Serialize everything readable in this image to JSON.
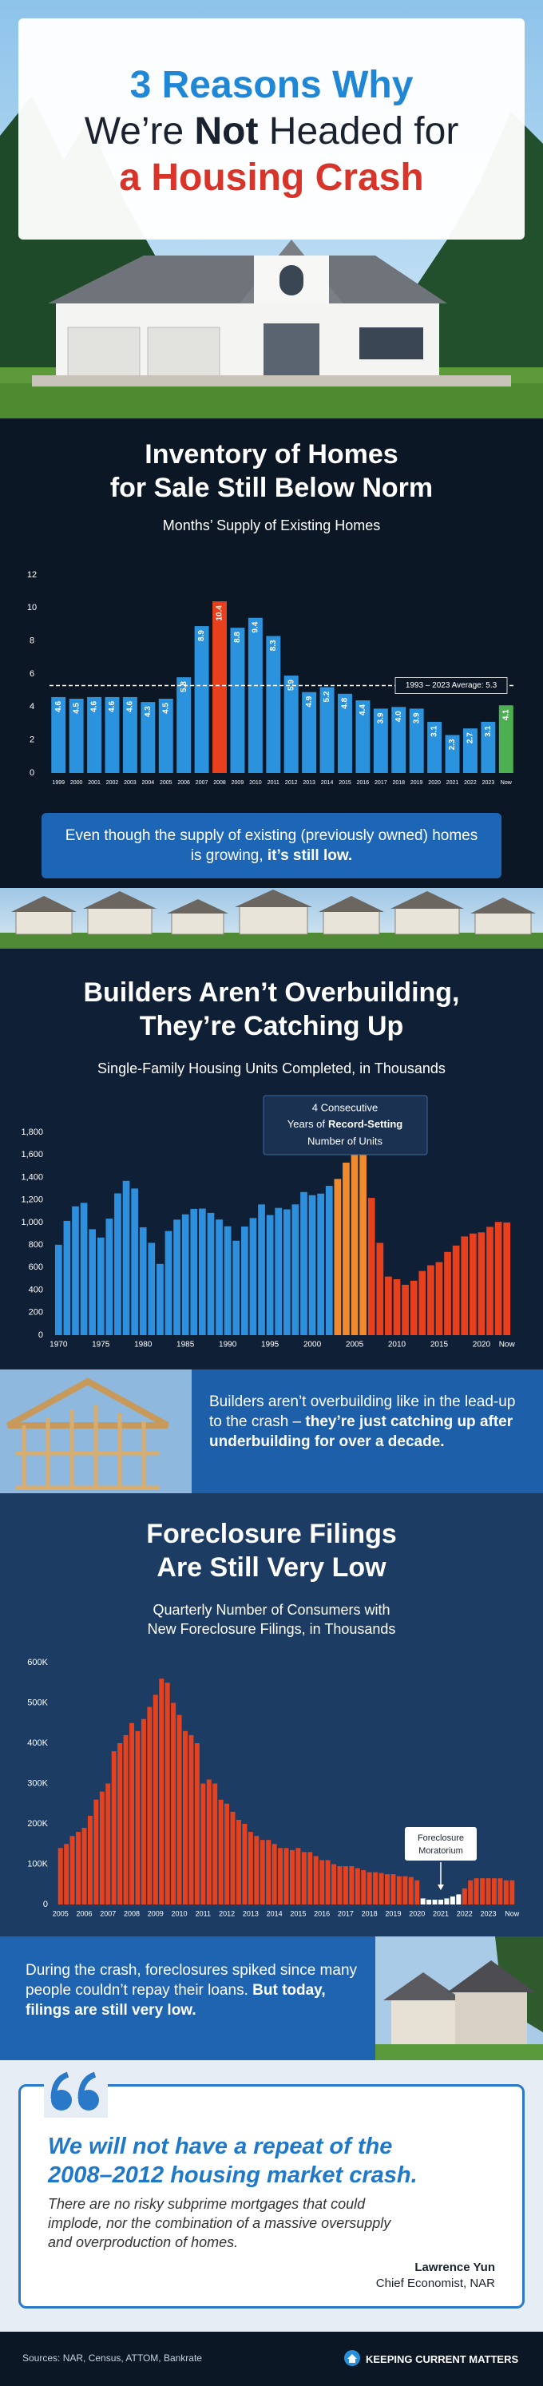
{
  "header": {
    "line1": "3 Reasons Why",
    "line2_pre": "We’re ",
    "line2_bold": "Not",
    "line2_post": " Headed for",
    "line3": "a Housing Crash"
  },
  "chart_data": [
    {
      "type": "bar",
      "title": [
        "Inventory of Homes",
        "for Sale Still Below Norm"
      ],
      "subtitle": "Months’ Supply of Existing Homes",
      "categories": [
        "1999",
        "2000",
        "2001",
        "2002",
        "2003",
        "2004",
        "2005",
        "2006",
        "2007",
        "2008",
        "2009",
        "2010",
        "2011",
        "2012",
        "2013",
        "2014",
        "2015",
        "2016",
        "2017",
        "2018",
        "2019",
        "2020",
        "2021",
        "2022",
        "2023",
        "Now"
      ],
      "values": [
        4.6,
        4.5,
        4.6,
        4.6,
        4.6,
        4.3,
        4.5,
        5.8,
        8.9,
        10.4,
        8.8,
        9.4,
        8.3,
        5.9,
        4.9,
        5.2,
        4.8,
        4.4,
        3.9,
        4.0,
        3.9,
        3.1,
        2.3,
        2.7,
        3.1,
        4.1
      ],
      "value_labels": [
        "4.6",
        "4.5",
        "4.6",
        "4.6",
        "4.6",
        "4.3",
        "4.5",
        "5.8",
        "8.9",
        "10.4",
        "8.8",
        "9.4",
        "8.3",
        "5.9",
        "4.9",
        "5.2",
        "4.8",
        "4.4",
        "3.9",
        "4.0",
        "3.9",
        "3.1",
        "2.3",
        "2.7",
        "3.1",
        "4.1"
      ],
      "colors": [
        "#2b93dd",
        "#2b93dd",
        "#2b93dd",
        "#2b93dd",
        "#2b93dd",
        "#2b93dd",
        "#2b93dd",
        "#2b93dd",
        "#2b93dd",
        "#e8401c",
        "#2b93dd",
        "#2b93dd",
        "#2b93dd",
        "#2b93dd",
        "#2b93dd",
        "#2b93dd",
        "#2b93dd",
        "#2b93dd",
        "#2b93dd",
        "#2b93dd",
        "#2b93dd",
        "#2b93dd",
        "#2b93dd",
        "#2b93dd",
        "#2b93dd",
        "#4caf50"
      ],
      "ylim": [
        0,
        12
      ],
      "yticks": [
        0,
        2,
        4,
        6,
        8,
        10,
        12
      ],
      "grid": false,
      "reference_line": {
        "value": 5.3,
        "label": "1993 – 2023 Average: 5.3"
      }
    },
    {
      "type": "bar",
      "title": [
        "Builders Aren’t Overbuilding,",
        "They’re Catching Up"
      ],
      "subtitle": "Single-Family Housing Units Completed, in Thousands",
      "categories": [
        "1970",
        null,
        null,
        null,
        null,
        "1975",
        null,
        null,
        null,
        null,
        "1980",
        null,
        null,
        null,
        null,
        "1985",
        null,
        null,
        null,
        null,
        "1990",
        null,
        null,
        null,
        null,
        "1995",
        null,
        null,
        null,
        null,
        "2000",
        null,
        null,
        null,
        null,
        "2005",
        null,
        null,
        null,
        null,
        "2010",
        null,
        null,
        null,
        null,
        "2015",
        null,
        null,
        null,
        null,
        "2020",
        null,
        null,
        "Now"
      ],
      "values": [
        802,
        1014,
        1143,
        1174,
        940,
        866,
        1034,
        1258,
        1369,
        1301,
        957,
        819,
        632,
        924,
        1025,
        1072,
        1120,
        1123,
        1085,
        1026,
        966,
        838,
        964,
        1039,
        1160,
        1066,
        1129,
        1116,
        1160,
        1270,
        1242,
        1256,
        1325,
        1386,
        1531,
        1636,
        1654,
        1218,
        819,
        520,
        496,
        447,
        483,
        569,
        620,
        648,
        738,
        795,
        876,
        902,
        912,
        961,
        1005,
        1000
      ],
      "colors": [
        "#2e90dc",
        "#2e90dc",
        "#2e90dc",
        "#2e90dc",
        "#2e90dc",
        "#2e90dc",
        "#2e90dc",
        "#2e90dc",
        "#2e90dc",
        "#2e90dc",
        "#2e90dc",
        "#2e90dc",
        "#2e90dc",
        "#2e90dc",
        "#2e90dc",
        "#2e90dc",
        "#2e90dc",
        "#2e90dc",
        "#2e90dc",
        "#2e90dc",
        "#2e90dc",
        "#2e90dc",
        "#2e90dc",
        "#2e90dc",
        "#2e90dc",
        "#2e90dc",
        "#2e90dc",
        "#2e90dc",
        "#2e90dc",
        "#2e90dc",
        "#2e90dc",
        "#2e90dc",
        "#2e90dc",
        "#f08a2c",
        "#f08a2c",
        "#f08a2c",
        "#f08a2c",
        "#e8401c",
        "#e8401c",
        "#e8401c",
        "#e8401c",
        "#e8401c",
        "#e8401c",
        "#e8401c",
        "#e8401c",
        "#e8401c",
        "#e8401c",
        "#e8401c",
        "#e8401c",
        "#e8401c",
        "#e8401c",
        "#e8401c",
        "#e8401c",
        "#e8401c"
      ],
      "ylim": [
        0,
        1800
      ],
      "yticks": [
        0,
        200,
        400,
        600,
        800,
        {
          "value": 1000,
          "label": "1,000"
        },
        {
          "value": 1200,
          "label": "1,200"
        },
        {
          "value": 1400,
          "label": "1,400"
        },
        {
          "value": 1600,
          "label": "1,600"
        },
        {
          "value": 1800,
          "label": "1,800"
        }
      ],
      "grid": false,
      "annotation": [
        "4 Consecutive",
        "Years of",
        "Record-Setting",
        "Number of Units"
      ]
    },
    {
      "type": "bar",
      "title": [
        "Foreclosure Filings",
        "Are Still Very Low"
      ],
      "subtitle": [
        "Quarterly Number of Consumers with",
        "New Foreclosure Filings, in Thousands"
      ],
      "categories": [
        "2005",
        null,
        null,
        null,
        "2006",
        null,
        null,
        null,
        "2007",
        null,
        null,
        null,
        "2008",
        null,
        null,
        null,
        "2009",
        null,
        null,
        null,
        "2010",
        null,
        null,
        null,
        "2011",
        null,
        null,
        null,
        "2012",
        null,
        null,
        null,
        "2013",
        null,
        null,
        null,
        "2014",
        null,
        null,
        null,
        "2015",
        null,
        null,
        null,
        "2016",
        null,
        null,
        null,
        "2017",
        null,
        null,
        null,
        "2018",
        null,
        null,
        null,
        "2019",
        null,
        null,
        null,
        "2020",
        null,
        null,
        null,
        "2021",
        null,
        null,
        null,
        "2022",
        null,
        null,
        null,
        "2023",
        null,
        null,
        null,
        "Now"
      ],
      "values": [
        140,
        150,
        170,
        180,
        190,
        220,
        260,
        280,
        300,
        380,
        400,
        420,
        450,
        430,
        460,
        490,
        520,
        560,
        550,
        500,
        470,
        430,
        420,
        400,
        300,
        310,
        300,
        260,
        250,
        230,
        210,
        200,
        180,
        170,
        160,
        160,
        150,
        140,
        140,
        135,
        140,
        130,
        130,
        120,
        110,
        110,
        100,
        95,
        95,
        95,
        90,
        85,
        80,
        80,
        78,
        75,
        75,
        70,
        70,
        68,
        60,
        15,
        12,
        12,
        12,
        15,
        20,
        25,
        40,
        60,
        65,
        65,
        65,
        65,
        65,
        60,
        60
      ],
      "colors": [
        "#e4411f",
        "#e4411f",
        "#e4411f",
        "#e4411f",
        "#e4411f",
        "#e4411f",
        "#e4411f",
        "#e4411f",
        "#e4411f",
        "#e4411f",
        "#e4411f",
        "#e4411f",
        "#e4411f",
        "#e4411f",
        "#e4411f",
        "#e4411f",
        "#e4411f",
        "#e4411f",
        "#e4411f",
        "#e4411f",
        "#e4411f",
        "#e4411f",
        "#e4411f",
        "#e4411f",
        "#e4411f",
        "#e4411f",
        "#e4411f",
        "#e4411f",
        "#e4411f",
        "#e4411f",
        "#e4411f",
        "#e4411f",
        "#e4411f",
        "#e4411f",
        "#e4411f",
        "#e4411f",
        "#e4411f",
        "#e4411f",
        "#e4411f",
        "#e4411f",
        "#e4411f",
        "#e4411f",
        "#e4411f",
        "#e4411f",
        "#e4411f",
        "#e4411f",
        "#e4411f",
        "#e4411f",
        "#e4411f",
        "#e4411f",
        "#e4411f",
        "#e4411f",
        "#e4411f",
        "#e4411f",
        "#e4411f",
        "#e4411f",
        "#e4411f",
        "#e4411f",
        "#e4411f",
        "#e4411f",
        "#e4411f",
        "#ffffff",
        "#ffffff",
        "#ffffff",
        "#ffffff",
        "#ffffff",
        "#ffffff",
        "#ffffff",
        "#e4411f",
        "#e4411f",
        "#e4411f",
        "#e4411f",
        "#e4411f",
        "#e4411f",
        "#e4411f",
        "#e4411f",
        "#e4411f"
      ],
      "ylim": [
        0,
        600
      ],
      "yticks": [
        0,
        {
          "value": 100,
          "label": "100K"
        },
        {
          "value": 200,
          "label": "200K"
        },
        {
          "value": 300,
          "label": "300K"
        },
        {
          "value": 400,
          "label": "400K"
        },
        {
          "value": 500,
          "label": "500K"
        },
        {
          "value": 600,
          "label": "600K"
        }
      ],
      "grid": false,
      "annotation": [
        "Foreclosure",
        "Moratorium"
      ]
    }
  ],
  "callouts": [
    {
      "text": "Even though the supply of existing (previously owned) homes is growing, ",
      "bold": "it’s still low."
    },
    {
      "text": "Builders aren’t overbuilding like in the lead-up to the crash – ",
      "bold": "they’re just catching up after underbuilding for over a decade."
    },
    {
      "text": "During the crash, foreclosures spiked since many people couldn’t repay their loans. ",
      "bold": "But today, filings are still very low."
    }
  ],
  "quote": {
    "headline": [
      "We will not have a repeat of the",
      "2008–2012 housing market crash."
    ],
    "body": [
      "There are no risky subprime mortgages that could",
      "implode, nor the combination of a massive oversupply",
      "and overproduction of homes."
    ],
    "name": "Lawrence Yun",
    "role": "Chief Economist, NAR"
  },
  "footer": {
    "sources": "Sources: NAR, Census, ATTOM, Bankrate",
    "brand": "KEEPING CURRENT MATTERS"
  }
}
